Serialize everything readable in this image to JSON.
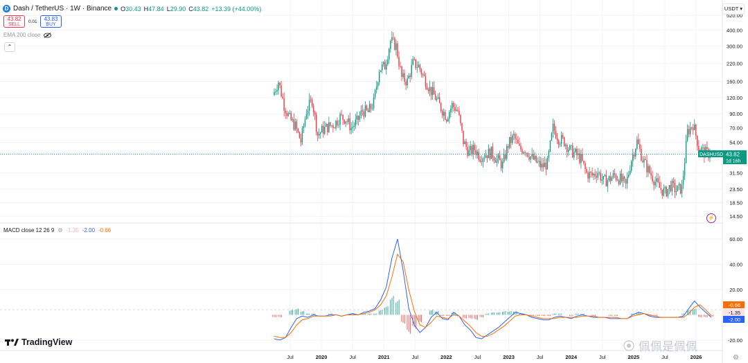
{
  "header": {
    "symbol_icon": "dash-logo-icon",
    "title": "Dash / TetherUS · 1W · Binance",
    "o_label": "O",
    "o_value": "30.43",
    "h_label": "H",
    "h_value": "47.84",
    "l_label": "L",
    "l_value": "29.90",
    "c_label": "C",
    "c_value": "43.82",
    "change": "+13.39 (+44.00%)"
  },
  "trade": {
    "sell_price": "43.82",
    "sell_label": "SELL",
    "spread": "0.01",
    "buy_price": "43.83",
    "buy_label": "BUY"
  },
  "indicators": {
    "ema_label": "EMA 200 close",
    "ema_icon": "eye-icon",
    "collapse_icon": "chevron-up-icon",
    "macd_label": "MACD close 12 26 9",
    "macd_icon": "settings-icon",
    "macd_hist_value": "-1.35",
    "macd_line_value": "-2.00",
    "macd_signal_value": "-0.66"
  },
  "price_axis": {
    "currency": "USDT",
    "ticks": [
      "520.00",
      "400.00",
      "300.00",
      "220.00",
      "160.00",
      "120.00",
      "90.00",
      "70.00",
      "54.00",
      "31.50",
      "23.50",
      "18.50",
      "14.50"
    ],
    "last_price_label": "DASHUSDT",
    "last_price": "43.82",
    "countdown": "1d 16h"
  },
  "macd_axis": {
    "ticks": [
      "60.00",
      "40.00",
      "20.00",
      "-20.00"
    ],
    "signal_badge": "-0.66",
    "hist_badge": "-1.35",
    "macd_badge": "-2.00"
  },
  "time_axis": {
    "labels": [
      "Jul",
      "2020",
      "Jul",
      "2021",
      "Jul",
      "2022",
      "Jul",
      "2023",
      "Jul",
      "2024",
      "Jul",
      "2025",
      "Jul",
      "2026"
    ]
  },
  "branding": {
    "tv_logo_icon": "tradingview-logo-icon",
    "tv_name": "TradingView",
    "watermark": "佩佩是佩佩",
    "lightning_icon": "lightning-icon",
    "settings_icon": "gear-icon"
  },
  "colors": {
    "up": "#089981",
    "down": "#f23645",
    "macd_line": "#2962ff",
    "signal_line": "#ff6d00",
    "hist_up": "#26a69a",
    "hist_down": "#ef5350",
    "grid": "#f0f3fa"
  },
  "chart_data": [
    {
      "type": "candlestick",
      "title": "Dash / TetherUS · 1W · Binance",
      "scale": "log",
      "ylim": [
        13.5,
        560
      ],
      "x": [
        "2019-07",
        "2019-08",
        "2019-09",
        "2019-10",
        "2019-11",
        "2019-12",
        "2020-01",
        "2020-02",
        "2020-03",
        "2020-04",
        "2020-05",
        "2020-06",
        "2020-07",
        "2020-08",
        "2020-09",
        "2020-10",
        "2020-11",
        "2020-12",
        "2021-01",
        "2021-02",
        "2021-03",
        "2021-04",
        "2021-05",
        "2021-06",
        "2021-07",
        "2021-08",
        "2021-09",
        "2021-10",
        "2021-11",
        "2021-12",
        "2022-01",
        "2022-02",
        "2022-03",
        "2022-04",
        "2022-05",
        "2022-06",
        "2022-07",
        "2022-08",
        "2022-09",
        "2022-10",
        "2022-11",
        "2022-12",
        "2023-01",
        "2023-02",
        "2023-03",
        "2023-04",
        "2023-05",
        "2023-06",
        "2023-07",
        "2023-08",
        "2023-09",
        "2023-10",
        "2023-11",
        "2023-12",
        "2024-01",
        "2024-02",
        "2024-03",
        "2024-04",
        "2024-05",
        "2024-06",
        "2024-07",
        "2024-08",
        "2024-09",
        "2024-10",
        "2024-11",
        "2024-12",
        "2025-01",
        "2025-02",
        "2025-03",
        "2025-04",
        "2025-05",
        "2025-06",
        "2025-07",
        "2025-08",
        "2025-09",
        "2025-10",
        "2025-11",
        "2025-12",
        "2026-01"
      ],
      "close": [
        125,
        160,
        105,
        82,
        72,
        55,
        95,
        115,
        62,
        68,
        72,
        75,
        85,
        82,
        70,
        78,
        95,
        92,
        110,
        200,
        210,
        330,
        300,
        170,
        160,
        220,
        210,
        170,
        140,
        120,
        100,
        85,
        105,
        95,
        55,
        45,
        48,
        42,
        44,
        45,
        40,
        36,
        52,
        60,
        48,
        48,
        42,
        38,
        35,
        37,
        70,
        58,
        55,
        47,
        44,
        40,
        31,
        30,
        32,
        27,
        28,
        30,
        28,
        25,
        40,
        55,
        40,
        33,
        28,
        24,
        22,
        25,
        23,
        24,
        65,
        75,
        50,
        45,
        43.82
      ],
      "high_max": 500,
      "low_min": 17.8,
      "last": 43.82
    },
    {
      "type": "line",
      "title": "MACD close 12 26 9",
      "ylim": [
        -25,
        65
      ],
      "x": [
        "2019-07",
        "2019-08",
        "2019-09",
        "2019-10",
        "2019-11",
        "2019-12",
        "2020-01",
        "2020-02",
        "2020-03",
        "2020-04",
        "2020-05",
        "2020-06",
        "2020-07",
        "2020-08",
        "2020-09",
        "2020-10",
        "2020-11",
        "2020-12",
        "2021-01",
        "2021-02",
        "2021-03",
        "2021-04",
        "2021-05",
        "2021-06",
        "2021-07",
        "2021-08",
        "2021-09",
        "2021-10",
        "2021-11",
        "2021-12",
        "2022-01",
        "2022-02",
        "2022-03",
        "2022-04",
        "2022-05",
        "2022-06",
        "2022-07",
        "2022-08",
        "2022-09",
        "2022-10",
        "2022-11",
        "2022-12",
        "2023-01",
        "2023-02",
        "2023-03",
        "2023-04",
        "2023-05",
        "2023-06",
        "2023-07",
        "2023-08",
        "2023-09",
        "2023-10",
        "2023-11",
        "2023-12",
        "2024-01",
        "2024-02",
        "2024-03",
        "2024-04",
        "2024-05",
        "2024-06",
        "2024-07",
        "2024-08",
        "2024-09",
        "2024-10",
        "2024-11",
        "2024-12",
        "2025-01",
        "2025-02",
        "2025-03",
        "2025-04",
        "2025-05",
        "2025-06",
        "2025-07",
        "2025-08",
        "2025-09",
        "2025-10",
        "2025-11",
        "2025-12",
        "2026-01"
      ],
      "series": [
        {
          "name": "MACD",
          "values": [
            -19,
            -20,
            -18,
            -10,
            -3,
            -1,
            -2,
            0,
            -1,
            -1,
            0,
            0,
            -1,
            0,
            1,
            0,
            2,
            3,
            5,
            12,
            22,
            45,
            60,
            35,
            5,
            -8,
            -14,
            -10,
            -2,
            2,
            -3,
            -4,
            2,
            -1,
            -8,
            -12,
            -18,
            -19,
            -16,
            -13,
            -10,
            -6,
            -2,
            2,
            1,
            0,
            -2,
            -3,
            -4,
            -4,
            -2,
            -1,
            -2,
            -3,
            -1,
            0,
            -1,
            -2,
            -2,
            -2,
            -3,
            -3,
            -3,
            -3,
            0,
            2,
            1,
            -1,
            -2,
            -2,
            -2,
            -2,
            -2,
            -1,
            5,
            11,
            6,
            2,
            -2.0
          ]
        },
        {
          "name": "Signal",
          "values": [
            -17,
            -18,
            -18,
            -14,
            -8,
            -4,
            -3,
            -1,
            -1,
            -1,
            -1,
            0,
            -1,
            0,
            0,
            0,
            1,
            2,
            4,
            8,
            15,
            30,
            48,
            42,
            20,
            3,
            -8,
            -10,
            -6,
            -1,
            -2,
            -3,
            0,
            -1,
            -5,
            -9,
            -14,
            -17,
            -17,
            -15,
            -12,
            -9,
            -5,
            -1,
            0,
            0,
            -1,
            -2,
            -3,
            -3,
            -3,
            -2,
            -2,
            -2,
            -2,
            -1,
            -1,
            -1,
            -2,
            -2,
            -2,
            -2,
            -3,
            -3,
            -1,
            0,
            1,
            0,
            -1,
            -2,
            -2,
            -2,
            -2,
            -2,
            1,
            6,
            8,
            4,
            -0.66
          ]
        },
        {
          "name": "Histogram",
          "values": [
            -2,
            -2,
            0,
            4,
            5,
            3,
            1,
            1,
            0,
            0,
            1,
            0,
            0,
            0,
            1,
            0,
            1,
            1,
            1,
            4,
            7,
            15,
            12,
            -7,
            -15,
            -11,
            -6,
            0,
            4,
            3,
            -1,
            -1,
            2,
            0,
            -3,
            -3,
            -4,
            -2,
            1,
            2,
            2,
            3,
            3,
            3,
            1,
            0,
            -1,
            -1,
            -1,
            -1,
            1,
            1,
            0,
            -1,
            1,
            1,
            0,
            -1,
            0,
            0,
            -1,
            -1,
            0,
            0,
            1,
            2,
            0,
            -1,
            -1,
            0,
            0,
            0,
            0,
            1,
            4,
            5,
            -2,
            -2,
            -1.35
          ]
        }
      ]
    }
  ]
}
